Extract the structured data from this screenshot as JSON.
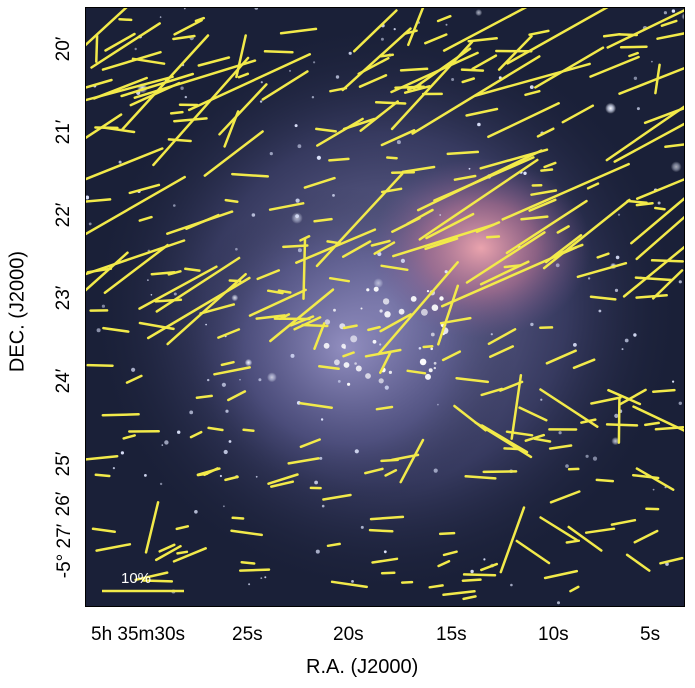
{
  "axes": {
    "xlabel": "R.A. (J2000)",
    "ylabel": "DEC. (J2000)",
    "yticks": [
      {
        "label": "20′"
      },
      {
        "label": "21′"
      },
      {
        "label": "22′"
      },
      {
        "label": "23′"
      },
      {
        "label": "24′"
      },
      {
        "label": "25′"
      },
      {
        "label": "26′"
      },
      {
        "label": "-5° 27′"
      }
    ],
    "xticks": [
      {
        "label": "5h 35m30s"
      },
      {
        "label": "25s"
      },
      {
        "label": "20s"
      },
      {
        "label": "15s"
      },
      {
        "label": "10s"
      },
      {
        "label": "5s"
      }
    ]
  },
  "scale_bar": {
    "label": "10%"
  },
  "colors": {
    "vectors": "#f2ea4a",
    "sky": "#1a2038",
    "nebula": "#8a86b8",
    "core": "#f0a0a8"
  }
}
